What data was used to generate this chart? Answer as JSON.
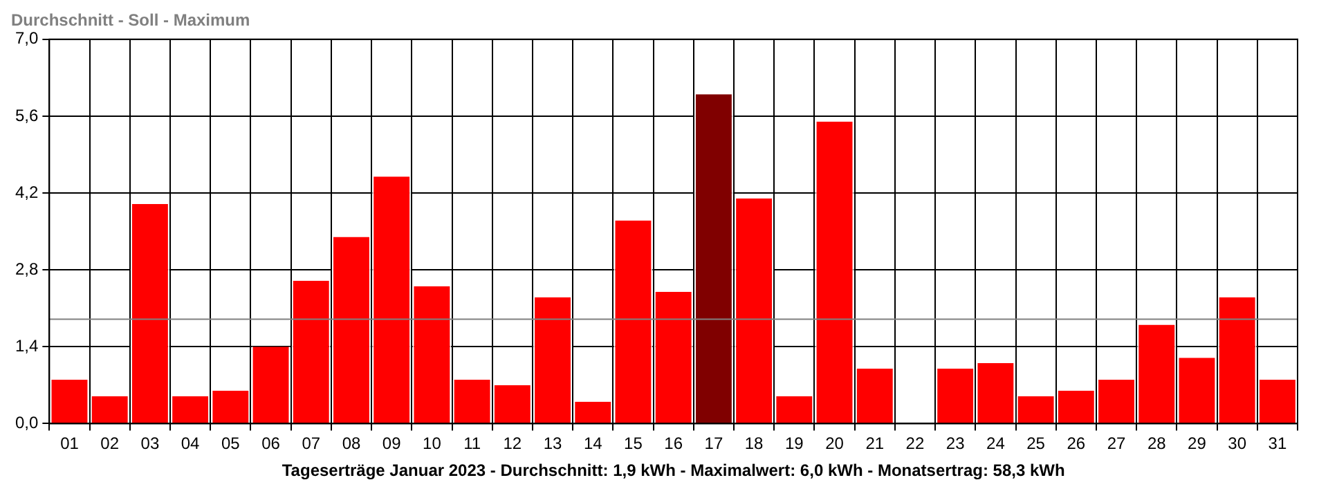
{
  "chart_data": {
    "type": "bar",
    "title": "Durchschnitt - Soll - Maximum",
    "xlabel": "Tageserträge Januar 2023 - Durchschnitt: 1,9 kWh - Maximalwert: 6,0 kWh - Monatsertrag: 58,3 kWh",
    "categories": [
      "01",
      "02",
      "03",
      "04",
      "05",
      "06",
      "07",
      "08",
      "09",
      "10",
      "11",
      "12",
      "13",
      "14",
      "15",
      "16",
      "17",
      "18",
      "19",
      "20",
      "21",
      "22",
      "23",
      "24",
      "25",
      "26",
      "27",
      "28",
      "29",
      "30",
      "31"
    ],
    "values": [
      0.8,
      0.5,
      4.0,
      0.5,
      0.6,
      1.4,
      2.6,
      3.4,
      4.5,
      2.5,
      0.8,
      0.7,
      2.3,
      0.4,
      3.7,
      2.4,
      6.0,
      4.1,
      0.5,
      5.5,
      1.0,
      0,
      1.0,
      1.1,
      0.5,
      0.6,
      0.8,
      1.8,
      1.2,
      2.3,
      0.8
    ],
    "colors": [
      "#ff0000",
      "#ff0000",
      "#ff0000",
      "#ff0000",
      "#ff0000",
      "#ff0000",
      "#ff0000",
      "#ff0000",
      "#ff0000",
      "#ff0000",
      "#ff0000",
      "#ff0000",
      "#ff0000",
      "#ff0000",
      "#ff0000",
      "#ff0000",
      "#800000",
      "#ff0000",
      "#ff0000",
      "#ff0000",
      "#ff0000",
      "#ff0000",
      "#ff0000",
      "#ff0000",
      "#ff0000",
      "#ff0000",
      "#ff0000",
      "#ff0000",
      "#ff0000",
      "#ff0000",
      "#ff0000"
    ],
    "ylim": [
      0,
      7
    ],
    "yticks": [
      {
        "value": 0,
        "label": "0,0"
      },
      {
        "value": 1.4,
        "label": "1,4"
      },
      {
        "value": 2.8,
        "label": "2,8"
      },
      {
        "value": 4.2,
        "label": "4,2"
      },
      {
        "value": 5.6,
        "label": "5,6"
      },
      {
        "value": 7,
        "label": "7,0"
      }
    ],
    "ref_lines": [
      {
        "axis": "y",
        "value": 1.9,
        "color": "#808080"
      }
    ],
    "grid": true
  }
}
